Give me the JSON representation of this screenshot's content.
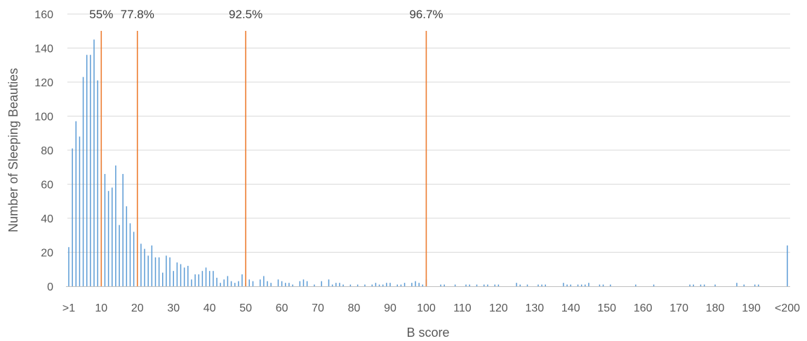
{
  "chart_data": {
    "type": "bar",
    "xlabel": "B score",
    "ylabel": "Number of Sleeping Beauties",
    "ylim": [
      0,
      160
    ],
    "y_ticks": [
      0,
      20,
      40,
      60,
      80,
      100,
      120,
      140,
      160
    ],
    "xlim": [
      1,
      200
    ],
    "x_tick_labels": [
      ">1",
      "10",
      "20",
      "30",
      "40",
      "50",
      "60",
      "70",
      "80",
      "90",
      "100",
      "110",
      "120",
      "130",
      "140",
      "150",
      "160",
      "170",
      "180",
      "190",
      "<200"
    ],
    "x_tick_values": [
      1,
      10,
      20,
      30,
      40,
      50,
      60,
      70,
      80,
      90,
      100,
      110,
      120,
      130,
      140,
      150,
      160,
      170,
      180,
      190,
      200
    ],
    "grid": "horizontal",
    "colors": {
      "bars": "#5B9BD5",
      "reference_lines": "#ED7D31",
      "grid": "#D9D9D9",
      "text": "#595959"
    },
    "reference_lines": [
      {
        "x": 10,
        "label": "55%"
      },
      {
        "x": 20,
        "label": "77.8%"
      },
      {
        "x": 50,
        "label": "92.5%"
      },
      {
        "x": 100,
        "label": "96.7%"
      }
    ],
    "bars": [
      [
        1,
        23
      ],
      [
        2,
        81
      ],
      [
        3,
        97
      ],
      [
        4,
        88
      ],
      [
        5,
        123
      ],
      [
        6,
        136
      ],
      [
        7,
        136
      ],
      [
        8,
        145
      ],
      [
        9,
        121
      ],
      [
        10,
        74
      ],
      [
        11,
        66
      ],
      [
        12,
        56
      ],
      [
        13,
        58
      ],
      [
        14,
        71
      ],
      [
        15,
        36
      ],
      [
        16,
        66
      ],
      [
        17,
        47
      ],
      [
        18,
        37
      ],
      [
        19,
        32
      ],
      [
        20,
        22
      ],
      [
        21,
        25
      ],
      [
        22,
        22
      ],
      [
        23,
        18
      ],
      [
        24,
        24
      ],
      [
        25,
        17
      ],
      [
        26,
        17
      ],
      [
        27,
        8
      ],
      [
        28,
        18
      ],
      [
        29,
        17
      ],
      [
        30,
        9
      ],
      [
        31,
        14
      ],
      [
        32,
        13
      ],
      [
        33,
        11
      ],
      [
        34,
        12
      ],
      [
        35,
        4
      ],
      [
        36,
        7
      ],
      [
        37,
        7
      ],
      [
        38,
        9
      ],
      [
        39,
        11
      ],
      [
        40,
        9
      ],
      [
        41,
        9
      ],
      [
        42,
        5
      ],
      [
        43,
        2
      ],
      [
        44,
        4
      ],
      [
        45,
        6
      ],
      [
        46,
        3
      ],
      [
        47,
        2
      ],
      [
        48,
        3
      ],
      [
        49,
        7
      ],
      [
        50,
        2
      ],
      [
        51,
        4
      ],
      [
        52,
        3
      ],
      [
        54,
        4
      ],
      [
        55,
        6
      ],
      [
        56,
        3
      ],
      [
        57,
        2
      ],
      [
        59,
        4
      ],
      [
        60,
        3
      ],
      [
        61,
        2
      ],
      [
        62,
        2
      ],
      [
        63,
        1
      ],
      [
        65,
        3
      ],
      [
        66,
        4
      ],
      [
        67,
        3
      ],
      [
        69,
        1
      ],
      [
        71,
        3
      ],
      [
        73,
        4
      ],
      [
        74,
        1
      ],
      [
        75,
        2
      ],
      [
        76,
        2
      ],
      [
        77,
        1
      ],
      [
        79,
        1
      ],
      [
        81,
        1
      ],
      [
        83,
        1
      ],
      [
        85,
        1
      ],
      [
        86,
        2
      ],
      [
        87,
        1
      ],
      [
        88,
        1
      ],
      [
        89,
        2
      ],
      [
        90,
        2
      ],
      [
        92,
        1
      ],
      [
        93,
        1
      ],
      [
        94,
        2
      ],
      [
        96,
        2
      ],
      [
        97,
        3
      ],
      [
        98,
        2
      ],
      [
        99,
        1
      ],
      [
        100,
        4
      ],
      [
        104,
        1
      ],
      [
        105,
        1
      ],
      [
        108,
        1
      ],
      [
        111,
        1
      ],
      [
        112,
        1
      ],
      [
        114,
        1
      ],
      [
        116,
        1
      ],
      [
        117,
        1
      ],
      [
        119,
        1
      ],
      [
        120,
        1
      ],
      [
        125,
        2
      ],
      [
        126,
        1
      ],
      [
        128,
        1
      ],
      [
        131,
        1
      ],
      [
        132,
        1
      ],
      [
        133,
        1
      ],
      [
        138,
        2
      ],
      [
        139,
        1
      ],
      [
        140,
        1
      ],
      [
        142,
        1
      ],
      [
        143,
        1
      ],
      [
        144,
        1
      ],
      [
        145,
        2
      ],
      [
        148,
        1
      ],
      [
        149,
        1
      ],
      [
        151,
        1
      ],
      [
        158,
        1
      ],
      [
        163,
        1
      ],
      [
        173,
        1
      ],
      [
        174,
        1
      ],
      [
        176,
        1
      ],
      [
        177,
        1
      ],
      [
        180,
        1
      ],
      [
        186,
        2
      ],
      [
        188,
        1
      ],
      [
        191,
        1
      ],
      [
        192,
        1
      ],
      [
        200,
        24
      ]
    ]
  }
}
